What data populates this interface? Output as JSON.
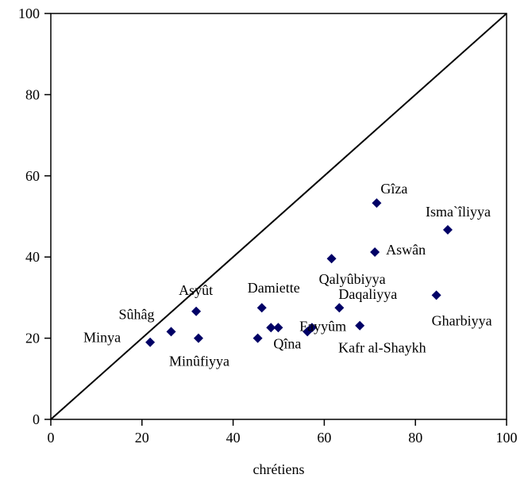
{
  "chart_data": {
    "type": "scatter",
    "title": "",
    "xlabel": "chrétiens",
    "ylabel": "",
    "xlim": [
      0,
      100
    ],
    "ylim": [
      0,
      100
    ],
    "x_ticks": [
      "0",
      "20",
      "40",
      "60",
      "80",
      "100"
    ],
    "y_ticks": [
      "0",
      "20",
      "40",
      "60",
      "80",
      "100"
    ],
    "grid": false,
    "legend": "none",
    "reference_line": {
      "from": [
        0,
        0
      ],
      "to": [
        100,
        100
      ]
    },
    "marker": "diamond",
    "marker_color": "#000066",
    "points": [
      {
        "label": "Gîza",
        "x": 71.5,
        "y": 53.3
      },
      {
        "label": "Isma`îliyya",
        "x": 87.1,
        "y": 46.7
      },
      {
        "label": "Aswân",
        "x": 71.1,
        "y": 41.2
      },
      {
        "label": "Qalyûbiyya",
        "x": 61.6,
        "y": 39.6
      },
      {
        "label": "Asyût",
        "x": 31.9,
        "y": 26.6
      },
      {
        "label": "Damiette",
        "x": 46.3,
        "y": 27.5
      },
      {
        "label": "Daqaliyya",
        "x": 63.3,
        "y": 27.5
      },
      {
        "label": "Gharbiyya",
        "x": 84.6,
        "y": 30.6
      },
      {
        "label": "Sûhâg",
        "x": 26.4,
        "y": 21.6
      },
      {
        "label": "Minya",
        "x": 21.8,
        "y": 19.0
      },
      {
        "label": "Minûfiyya",
        "x": 32.4,
        "y": 20.0
      },
      {
        "label": "",
        "x": 45.4,
        "y": 20.0
      },
      {
        "label": "",
        "x": 48.3,
        "y": 22.6
      },
      {
        "label": "Qîna",
        "x": 49.9,
        "y": 22.6
      },
      {
        "label": "Fayyûm",
        "x": 56.3,
        "y": 21.6
      },
      {
        "label": "",
        "x": 57.3,
        "y": 22.6
      },
      {
        "label": "Kafr al-Shaykh",
        "x": 67.8,
        "y": 23.1
      }
    ]
  }
}
